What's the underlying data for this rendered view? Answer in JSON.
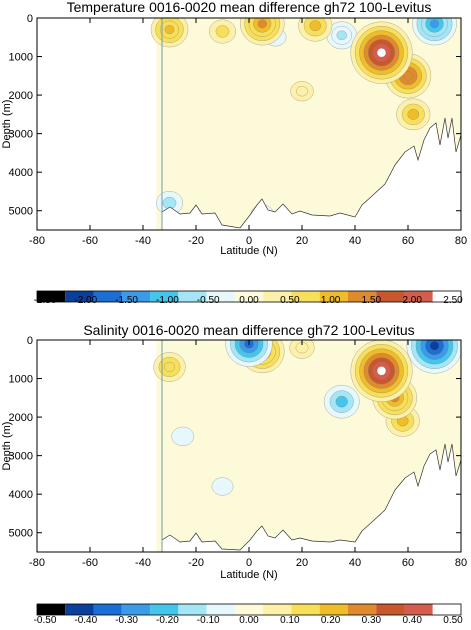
{
  "chart_data": [
    {
      "type": "heatmap",
      "title": "Temperature 0016-0020 mean difference gh72 100-Levitus",
      "xlabel": "Latitude (N)",
      "ylabel": "Depth (m)",
      "xlim": [
        -80,
        80
      ],
      "ylim": [
        5500,
        0
      ],
      "y_inverted": true,
      "x_ticks": [
        "-80",
        "-60",
        "-40",
        "-20",
        "0",
        "20",
        "40",
        "60",
        "80"
      ],
      "y_ticks": [
        "0",
        "1000",
        "2000",
        "3000",
        "4000",
        "5000"
      ],
      "colorbar_ticks": [
        "-2.50",
        "-2.00",
        "-1.50",
        "-1.00",
        "-0.50",
        "0.00",
        "0.50",
        "1.00",
        "1.50",
        "2.00",
        "2.50"
      ],
      "colorbar_range": [
        -2.5,
        2.5
      ],
      "data_start_latitude": -35,
      "grid": false,
      "features": [
        {
          "lat": 50,
          "depth": 900,
          "value": 2.6
        },
        {
          "lat": 60,
          "depth": 1500,
          "value": 1.7
        },
        {
          "lat": 62,
          "depth": 2500,
          "value": 1.0
        },
        {
          "lat": 5,
          "depth": 150,
          "value": 1.6
        },
        {
          "lat": 25,
          "depth": 200,
          "value": 1.0
        },
        {
          "lat": -30,
          "depth": 300,
          "value": 1.2
        },
        {
          "lat": -10,
          "depth": 350,
          "value": 0.6
        },
        {
          "lat": 70,
          "depth": 150,
          "value": -1.6
        },
        {
          "lat": 35,
          "depth": 450,
          "value": -0.8
        },
        {
          "lat": 10,
          "depth": 500,
          "value": -0.3
        },
        {
          "lat": -30,
          "depth": 4800,
          "value": -0.6
        },
        {
          "lat": 5,
          "depth": 5100,
          "value": -0.4
        },
        {
          "lat": 20,
          "depth": 1900,
          "value": 0.4
        }
      ]
    },
    {
      "type": "heatmap",
      "title": "Salinity 0016-0020 mean difference gh72 100-Levitus",
      "xlabel": "Latitude (N)",
      "ylabel": "Depth (m)",
      "xlim": [
        -80,
        80
      ],
      "ylim": [
        5500,
        0
      ],
      "y_inverted": true,
      "x_ticks": [
        "-80",
        "-60",
        "-40",
        "-20",
        "0",
        "20",
        "40",
        "60",
        "80"
      ],
      "y_ticks": [
        "0",
        "1000",
        "2000",
        "3000",
        "4000",
        "5000"
      ],
      "colorbar_ticks": [
        "-0.50",
        "-0.40",
        "-0.30",
        "-0.20",
        "-0.10",
        "0.00",
        "0.10",
        "0.20",
        "0.30",
        "0.40",
        "0.50"
      ],
      "colorbar_range": [
        -0.5,
        0.5
      ],
      "data_start_latitude": -35,
      "grid": false,
      "features": [
        {
          "lat": 50,
          "depth": 800,
          "value": 0.52
        },
        {
          "lat": 55,
          "depth": 1500,
          "value": 0.32
        },
        {
          "lat": 58,
          "depth": 2100,
          "value": 0.2
        },
        {
          "lat": -30,
          "depth": 700,
          "value": 0.18
        },
        {
          "lat": 5,
          "depth": 300,
          "value": 0.32
        },
        {
          "lat": 20,
          "depth": 200,
          "value": 0.1
        },
        {
          "lat": 70,
          "depth": 150,
          "value": -0.45
        },
        {
          "lat": 35,
          "depth": 1600,
          "value": -0.22
        },
        {
          "lat": 0,
          "depth": 100,
          "value": -0.35
        },
        {
          "lat": -25,
          "depth": 2500,
          "value": -0.07
        },
        {
          "lat": -10,
          "depth": 3800,
          "value": -0.06
        }
      ]
    }
  ],
  "palette": [
    "#000000",
    "#0a3f9c",
    "#1a6fd6",
    "#3b9be8",
    "#44c6ec",
    "#a4e6f5",
    "#e6f8fb",
    "#fdfad9",
    "#fdf0a8",
    "#f8df5a",
    "#f0bd2a",
    "#df8a2c",
    "#c8572e",
    "#d65c4e",
    "#ffffff"
  ]
}
